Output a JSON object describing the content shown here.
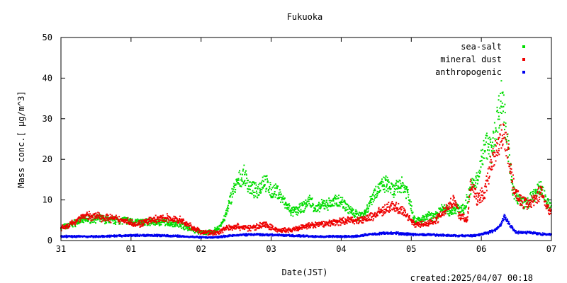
{
  "chart_data": {
    "type": "scatter",
    "title": "Fukuoka",
    "xlabel": "Date(JST)",
    "ylabel": "Mass conc.[ μg/m^3]",
    "ylim": [
      0,
      50
    ],
    "xlim_days": [
      0,
      7
    ],
    "x_ticks": [
      {
        "value": 0,
        "label": "31"
      },
      {
        "value": 1,
        "label": "01"
      },
      {
        "value": 2,
        "label": "02"
      },
      {
        "value": 3,
        "label": "03"
      },
      {
        "value": 4,
        "label": "04"
      },
      {
        "value": 5,
        "label": "05"
      },
      {
        "value": 6,
        "label": "06"
      },
      {
        "value": 7,
        "label": "07"
      }
    ],
    "y_ticks": [
      0,
      10,
      20,
      30,
      40,
      50
    ],
    "legend_position": "top-right",
    "footer": "created:2025/04/07 00:18",
    "series": [
      {
        "name": "sea-salt",
        "color": "#00dd00",
        "points": [
          [
            0.0,
            3
          ],
          [
            0.15,
            4
          ],
          [
            0.3,
            5
          ],
          [
            0.5,
            5.5
          ],
          [
            0.7,
            5
          ],
          [
            0.9,
            5
          ],
          [
            1.1,
            4.5
          ],
          [
            1.3,
            4.5
          ],
          [
            1.5,
            4.5
          ],
          [
            1.7,
            4
          ],
          [
            1.9,
            2.5
          ],
          [
            2.0,
            2
          ],
          [
            2.15,
            2
          ],
          [
            2.25,
            3
          ],
          [
            2.35,
            6
          ],
          [
            2.45,
            12
          ],
          [
            2.55,
            15
          ],
          [
            2.62,
            16
          ],
          [
            2.7,
            13
          ],
          [
            2.8,
            12
          ],
          [
            2.9,
            15
          ],
          [
            3.0,
            12
          ],
          [
            3.1,
            12
          ],
          [
            3.2,
            9
          ],
          [
            3.3,
            7
          ],
          [
            3.45,
            8
          ],
          [
            3.55,
            10
          ],
          [
            3.65,
            7.5
          ],
          [
            3.75,
            9
          ],
          [
            3.85,
            9
          ],
          [
            3.95,
            10
          ],
          [
            4.05,
            9
          ],
          [
            4.15,
            7
          ],
          [
            4.25,
            6
          ],
          [
            4.35,
            7
          ],
          [
            4.45,
            11
          ],
          [
            4.55,
            13
          ],
          [
            4.65,
            14
          ],
          [
            4.75,
            12
          ],
          [
            4.85,
            14
          ],
          [
            4.95,
            12
          ],
          [
            5.05,
            5
          ],
          [
            5.15,
            5
          ],
          [
            5.25,
            6
          ],
          [
            5.35,
            6
          ],
          [
            5.45,
            8
          ],
          [
            5.55,
            7
          ],
          [
            5.65,
            8
          ],
          [
            5.75,
            7.5
          ],
          [
            5.85,
            13
          ],
          [
            5.95,
            15
          ],
          [
            6.05,
            24
          ],
          [
            6.15,
            22
          ],
          [
            6.25,
            32
          ],
          [
            6.3,
            36
          ],
          [
            6.35,
            28
          ],
          [
            6.45,
            12
          ],
          [
            6.55,
            10
          ],
          [
            6.65,
            9
          ],
          [
            6.75,
            11
          ],
          [
            6.85,
            13
          ],
          [
            6.95,
            9
          ],
          [
            7.0,
            8
          ]
        ]
      },
      {
        "name": "mineral dust",
        "color": "#ee0000",
        "points": [
          [
            0.0,
            3
          ],
          [
            0.15,
            4
          ],
          [
            0.3,
            6
          ],
          [
            0.5,
            6
          ],
          [
            0.7,
            5.5
          ],
          [
            0.9,
            5
          ],
          [
            1.1,
            4
          ],
          [
            1.3,
            5
          ],
          [
            1.5,
            5.5
          ],
          [
            1.7,
            5
          ],
          [
            1.9,
            3
          ],
          [
            2.0,
            2
          ],
          [
            2.15,
            2
          ],
          [
            2.25,
            2
          ],
          [
            2.35,
            3
          ],
          [
            2.5,
            3.5
          ],
          [
            2.7,
            3
          ],
          [
            2.9,
            4
          ],
          [
            3.1,
            2.5
          ],
          [
            3.3,
            2.5
          ],
          [
            3.5,
            3.5
          ],
          [
            3.7,
            4
          ],
          [
            3.9,
            4.5
          ],
          [
            4.1,
            5
          ],
          [
            4.3,
            5
          ],
          [
            4.45,
            6
          ],
          [
            4.6,
            7.5
          ],
          [
            4.75,
            8.5
          ],
          [
            4.9,
            7
          ],
          [
            5.05,
            4
          ],
          [
            5.2,
            4
          ],
          [
            5.35,
            5
          ],
          [
            5.5,
            8
          ],
          [
            5.6,
            10
          ],
          [
            5.7,
            6
          ],
          [
            5.8,
            5
          ],
          [
            5.85,
            14
          ],
          [
            5.95,
            10
          ],
          [
            6.05,
            12
          ],
          [
            6.15,
            20
          ],
          [
            6.25,
            24
          ],
          [
            6.3,
            27
          ],
          [
            6.38,
            22
          ],
          [
            6.45,
            14
          ],
          [
            6.55,
            10
          ],
          [
            6.65,
            9
          ],
          [
            6.75,
            10
          ],
          [
            6.85,
            12
          ],
          [
            6.95,
            8
          ],
          [
            7.0,
            7
          ]
        ]
      },
      {
        "name": "anthropogenic",
        "color": "#0000ee",
        "points": [
          [
            0.0,
            1
          ],
          [
            0.3,
            1
          ],
          [
            0.6,
            1
          ],
          [
            0.9,
            1.2
          ],
          [
            1.2,
            1.3
          ],
          [
            1.5,
            1.2
          ],
          [
            1.8,
            1
          ],
          [
            2.0,
            0.8
          ],
          [
            2.2,
            0.8
          ],
          [
            2.4,
            1.2
          ],
          [
            2.7,
            1.5
          ],
          [
            3.0,
            1.4
          ],
          [
            3.3,
            1.2
          ],
          [
            3.6,
            1
          ],
          [
            3.9,
            1
          ],
          [
            4.2,
            1
          ],
          [
            4.4,
            1.5
          ],
          [
            4.6,
            1.8
          ],
          [
            4.8,
            1.8
          ],
          [
            5.0,
            1.5
          ],
          [
            5.3,
            1.4
          ],
          [
            5.6,
            1.2
          ],
          [
            5.9,
            1.2
          ],
          [
            6.1,
            2
          ],
          [
            6.2,
            2.5
          ],
          [
            6.28,
            4
          ],
          [
            6.33,
            6
          ],
          [
            6.4,
            4
          ],
          [
            6.5,
            2
          ],
          [
            6.7,
            2
          ],
          [
            6.9,
            1.5
          ],
          [
            7.0,
            1.5
          ]
        ]
      }
    ]
  }
}
